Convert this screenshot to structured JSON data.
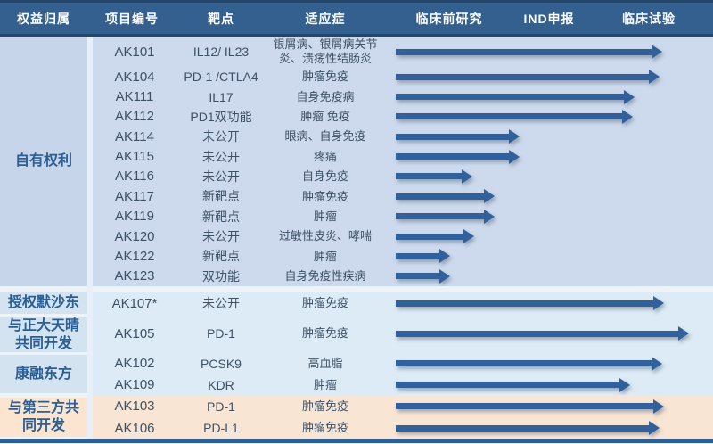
{
  "header": {
    "columns": [
      "权益归属",
      "项目编号",
      "靶点",
      "适应症",
      "临床前研究",
      "IND申报",
      "临床试验"
    ]
  },
  "sections": [
    {
      "owner": "自有权利",
      "rows": [
        {
          "code": "AK101",
          "target": "IL12/ IL23",
          "indication": "银屑病、银屑病关节炎、溃疡性结肠炎",
          "arrow_len": 299
        },
        {
          "code": "AK104",
          "target": "PD-1 /CTLA4",
          "indication": "肿瘤免疫",
          "arrow_len": 296
        },
        {
          "code": "AK111",
          "target": "IL17",
          "indication": "自身免疫病",
          "arrow_len": 268
        },
        {
          "code": "AK112",
          "target": "PD1双功能",
          "indication": "肿瘤 免疫",
          "arrow_len": 266
        },
        {
          "code": "AK114",
          "target": "未公开",
          "indication": "眼病、自身免疫",
          "arrow_len": 139
        },
        {
          "code": "AK115",
          "target": "未公开",
          "indication": "疼痛",
          "arrow_len": 139
        },
        {
          "code": "AK116",
          "target": "未公开",
          "indication": "自身免疫",
          "arrow_len": 86
        },
        {
          "code": "AK117",
          "target": "新靶点",
          "indication": "肿瘤免疫",
          "arrow_len": 111
        },
        {
          "code": "AK119",
          "target": "新靶点",
          "indication": "肿瘤",
          "arrow_len": 111
        },
        {
          "code": "AK120",
          "target": "未公开",
          "indication": "过敏性皮炎、哮喘",
          "arrow_len": 88
        },
        {
          "code": "AK122",
          "target": "新靶点",
          "indication": "肿瘤",
          "arrow_len": 61
        },
        {
          "code": "AK123",
          "target": "双功能",
          "indication": "自身免疫性疾病",
          "arrow_len": 61
        }
      ]
    },
    {
      "owner": "授权默沙东",
      "rows": [
        {
          "code": "AK107*",
          "target": "未公开",
          "indication": "肿瘤免疫",
          "arrow_len": 301
        }
      ]
    },
    {
      "owner": "与正大天晴共同开发",
      "rows": [
        {
          "code": "AK105",
          "target": "PD-1",
          "indication": "肿瘤免疫",
          "arrow_len": 329
        }
      ]
    },
    {
      "owner": "康融东方",
      "rows": [
        {
          "code": "AK102",
          "target": "PCSK9",
          "indication": "高血脂",
          "arrow_len": 299
        },
        {
          "code": "AK109",
          "target": "KDR",
          "indication": "肿瘤",
          "arrow_len": 263
        }
      ]
    },
    {
      "owner": "与第三方共同开发",
      "rows": [
        {
          "code": "AK103",
          "target": "PD-1",
          "indication": "肿瘤免疫",
          "arrow_len": 301
        },
        {
          "code": "AK106",
          "target": "PD-L1",
          "indication": "肿瘤免疫",
          "arrow_len": 296
        }
      ]
    }
  ],
  "chart_data": {
    "type": "table",
    "title": "",
    "columns": [
      "权益归属",
      "项目编号",
      "靶点",
      "适应症",
      "临床前研究",
      "IND申报",
      "临床试验"
    ],
    "stage_axis": [
      "临床前研究",
      "IND申报",
      "临床试验"
    ],
    "rows": [
      {
        "owner": "自有权利",
        "project": "AK101",
        "target": "IL12/ IL23",
        "indication": "银屑病、银屑病关节炎、溃疡性结肠炎",
        "progress_stage": "临床试验"
      },
      {
        "owner": "自有权利",
        "project": "AK104",
        "target": "PD-1 /CTLA4",
        "indication": "肿瘤免疫",
        "progress_stage": "临床试验"
      },
      {
        "owner": "自有权利",
        "project": "AK111",
        "target": "IL17",
        "indication": "自身免疫病",
        "progress_stage": "临床试验"
      },
      {
        "owner": "自有权利",
        "project": "AK112",
        "target": "PD1双功能",
        "indication": "肿瘤 免疫",
        "progress_stage": "临床试验"
      },
      {
        "owner": "自有权利",
        "project": "AK114",
        "target": "未公开",
        "indication": "眼病、自身免疫",
        "progress_stage": "IND申报前"
      },
      {
        "owner": "自有权利",
        "project": "AK115",
        "target": "未公开",
        "indication": "疼痛",
        "progress_stage": "IND申报前"
      },
      {
        "owner": "自有权利",
        "project": "AK116",
        "target": "未公开",
        "indication": "自身免疫",
        "progress_stage": "临床前研究"
      },
      {
        "owner": "自有权利",
        "project": "AK117",
        "target": "新靶点",
        "indication": "肿瘤免疫",
        "progress_stage": "临床前研究"
      },
      {
        "owner": "自有权利",
        "project": "AK119",
        "target": "新靶点",
        "indication": "肿瘤",
        "progress_stage": "临床前研究"
      },
      {
        "owner": "自有权利",
        "project": "AK120",
        "target": "未公开",
        "indication": "过敏性皮炎、哮喘",
        "progress_stage": "临床前研究"
      },
      {
        "owner": "自有权利",
        "project": "AK122",
        "target": "新靶点",
        "indication": "肿瘤",
        "progress_stage": "临床前研究"
      },
      {
        "owner": "自有权利",
        "project": "AK123",
        "target": "双功能",
        "indication": "自身免疫性疾病",
        "progress_stage": "临床前研究"
      },
      {
        "owner": "授权默沙东",
        "project": "AK107*",
        "target": "未公开",
        "indication": "肿瘤免疫",
        "progress_stage": "临床试验"
      },
      {
        "owner": "与正大天晴共同开发",
        "project": "AK105",
        "target": "PD-1",
        "indication": "肿瘤免疫",
        "progress_stage": "临床试验"
      },
      {
        "owner": "康融东方",
        "project": "AK102",
        "target": "PCSK9",
        "indication": "高血脂",
        "progress_stage": "临床试验"
      },
      {
        "owner": "康融东方",
        "project": "AK109",
        "target": "KDR",
        "indication": "肿瘤",
        "progress_stage": "临床试验"
      },
      {
        "owner": "与第三方共同开发",
        "project": "AK103",
        "target": "PD-1",
        "indication": "肿瘤免疫",
        "progress_stage": "临床试验"
      },
      {
        "owner": "与第三方共同开发",
        "project": "AK106",
        "target": "PD-L1",
        "indication": "肿瘤免疫",
        "progress_stage": "临床试验"
      }
    ]
  },
  "colors": {
    "header_bg": "#33608f",
    "header_text": "#ffffff",
    "dark_line": "#24466b",
    "arrow": "#31609a",
    "zone1_body_bg": "#cdd9ec",
    "zone1_owner_bg": "#c7d5ea",
    "zone2_body_bg": "#dcebf5",
    "zone2_owner_bg": "#d3e3f0",
    "peach_body_bg": "#f9e5d3",
    "peach_owner_bg": "#fbe4d0",
    "owner_text": "#2a5e96",
    "body_text": "#3e5164",
    "bottom_bar": "#2e5f94"
  }
}
